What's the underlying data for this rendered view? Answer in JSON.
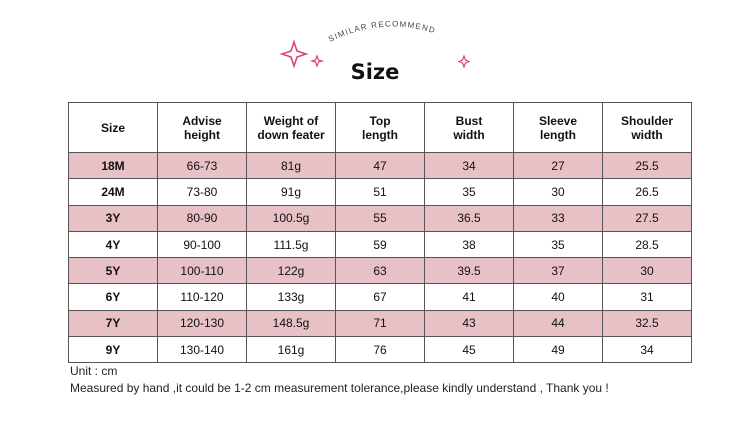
{
  "header": {
    "tagline": "SIMILAR RECOMMEND",
    "title": "Size"
  },
  "table": {
    "columns": [
      "Size",
      "Advise\nheight",
      "Weight of\ndown feater",
      "Top\nlength",
      "Bust\nwidth",
      "Sleeve\nlength",
      "Shoulder\nwidth"
    ],
    "rows": [
      [
        "18M",
        "66-73",
        "81g",
        "47",
        "34",
        "27",
        "25.5"
      ],
      [
        "24M",
        "73-80",
        "91g",
        "51",
        "35",
        "30",
        "26.5"
      ],
      [
        "3Y",
        "80-90",
        "100.5g",
        "55",
        "36.5",
        "33",
        "27.5"
      ],
      [
        "4Y",
        "90-100",
        "111.5g",
        "59",
        "38",
        "35",
        "28.5"
      ],
      [
        "5Y",
        "100-110",
        "122g",
        "63",
        "39.5",
        "37",
        "30"
      ],
      [
        "6Y",
        "110-120",
        "133g",
        "67",
        "41",
        "40",
        "31"
      ],
      [
        "7Y",
        "120-130",
        "148.5g",
        "71",
        "43",
        "44",
        "32.5"
      ],
      [
        "9Y",
        "130-140",
        "161g",
        "76",
        "45",
        "49",
        "34"
      ]
    ]
  },
  "notes": [
    "Unit : cm",
    "Measured by hand ,it could be 1-2 cm measurement tolerance,please kindly understand , Thank you !"
  ]
}
